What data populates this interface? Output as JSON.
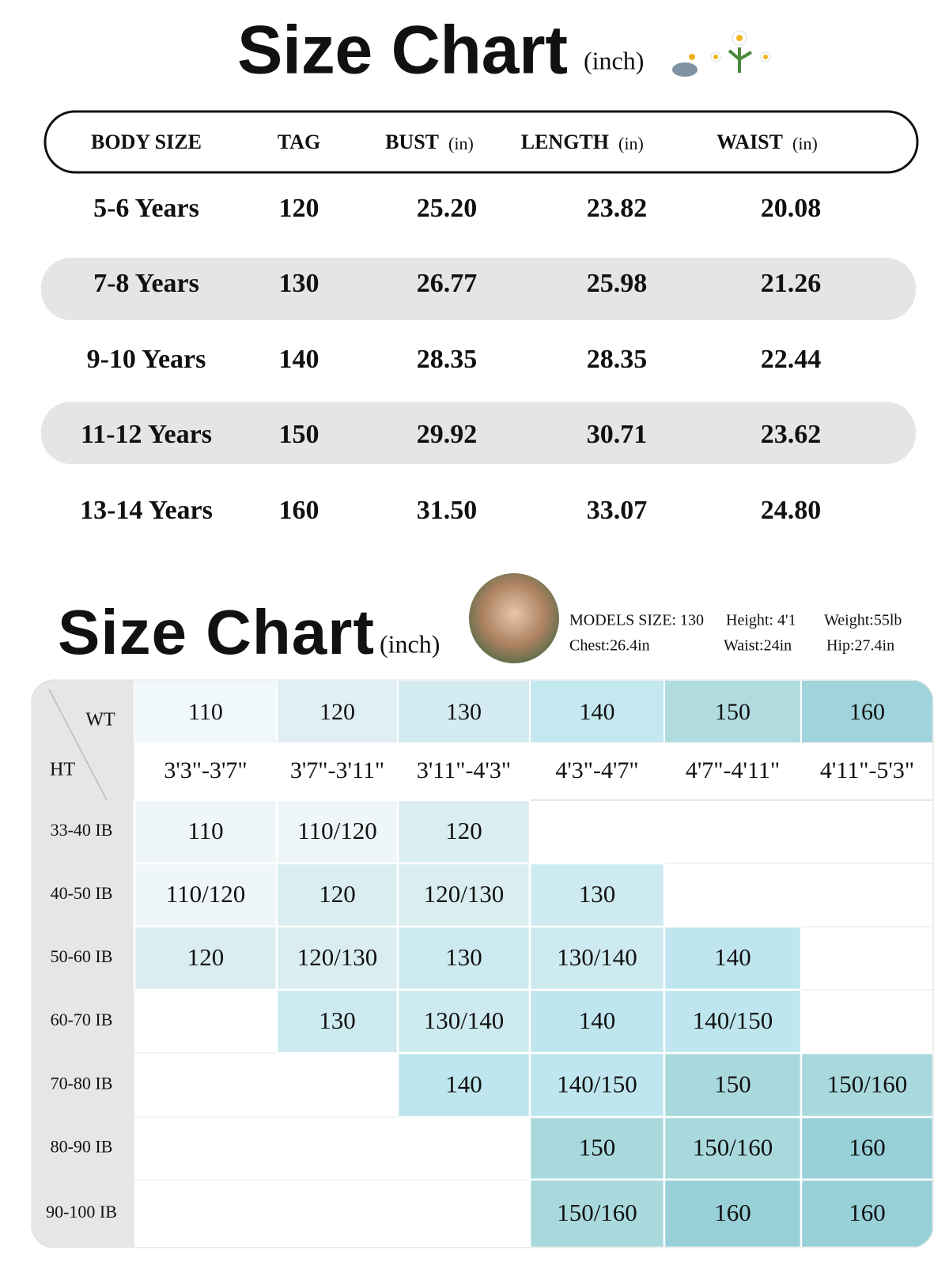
{
  "header": {
    "title": "Size Chart",
    "unit": "(inch)"
  },
  "size_table": {
    "columns": [
      {
        "label": "BODY SIZE"
      },
      {
        "label": "TAG"
      },
      {
        "label": "BUST",
        "unit": "(in)"
      },
      {
        "label": "LENGTH",
        "unit": "(in)"
      },
      {
        "label": "WAIST",
        "unit": "(in)"
      }
    ],
    "rows": [
      [
        "5-6 Years",
        "120",
        "25.20",
        "23.82",
        "20.08"
      ],
      [
        "7-8 Years",
        "130",
        "26.77",
        "25.98",
        "21.26"
      ],
      [
        "9-10 Years",
        "140",
        "28.35",
        "28.35",
        "22.44"
      ],
      [
        "11-12 Years",
        "150",
        "29.92",
        "30.71",
        "23.62"
      ],
      [
        "13-14 Years",
        "160",
        "31.50",
        "33.07",
        "24.80"
      ]
    ]
  },
  "model_chart": {
    "title": "Size Chart",
    "unit": "(inch)",
    "model_info": [
      [
        "MODELS  SIZE: 130",
        "Height: 4'1",
        "Weight:55lb"
      ],
      [
        "Chest:26.4in",
        "Waist:24in",
        "Hip:27.4in"
      ]
    ],
    "corner": {
      "top_label": "WT",
      "bottom_label": "HT"
    },
    "tags": [
      "110",
      "120",
      "130",
      "140",
      "150",
      "160"
    ],
    "heights": [
      "3'3\"-3'7\"",
      "3'7\"-3'11\"",
      "3'11\"-4'3\"",
      "4'3\"-4'7\"",
      "4'7\"-4'11\"",
      "4'11\"-5'3\""
    ],
    "weights": [
      "33-40 IB",
      "40-50 IB",
      "50-60 IB",
      "60-70 IB",
      "70-80 IB",
      "80-90 IB",
      "90-100 IB"
    ],
    "cells": [
      [
        "110",
        "110/120",
        "120",
        null,
        null,
        null
      ],
      [
        "110/120",
        "120",
        "120/130",
        "130",
        null,
        null
      ],
      [
        "120",
        "120/130",
        "130",
        "130/140",
        "140",
        null
      ],
      [
        null,
        "130",
        "130/140",
        "140",
        "140/150",
        null
      ],
      [
        null,
        null,
        "140",
        "140/150",
        "150",
        "150/160"
      ],
      [
        null,
        null,
        null,
        "150",
        "150/160",
        "160"
      ],
      [
        null,
        null,
        null,
        "150/160",
        "160",
        "160"
      ]
    ]
  }
}
